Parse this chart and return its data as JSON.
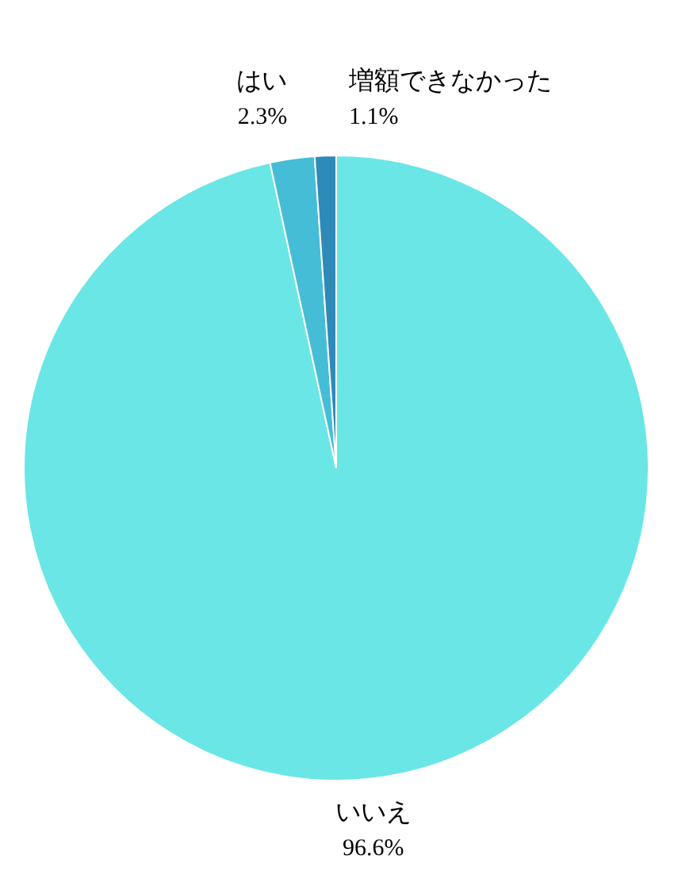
{
  "chart_data": {
    "type": "pie",
    "categories": [
      "いいえ",
      "はい",
      "増額できなかった"
    ],
    "values": [
      96.6,
      2.3,
      1.1
    ],
    "value_labels": [
      "96.6%",
      "2.3%",
      "1.1%"
    ],
    "colors": [
      "#6ae6e6",
      "#45bdd6",
      "#2e8ab8"
    ]
  }
}
